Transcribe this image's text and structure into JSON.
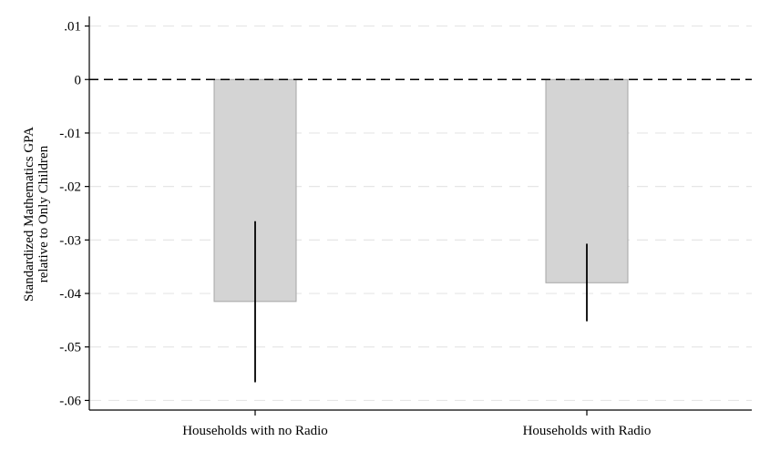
{
  "chart_data": {
    "type": "bar",
    "categories": [
      "Households with no Radio",
      "Households with Radio"
    ],
    "values": [
      -0.0415,
      -0.038
    ],
    "error_bars": [
      {
        "low": -0.0566,
        "high": -0.0265
      },
      {
        "low": -0.0452,
        "high": -0.0307
      }
    ],
    "title": "",
    "xlabel": "",
    "ylabel": [
      "Standardized Mathematics GPA",
      "relative to Only Children"
    ],
    "ylim": [
      -0.0618,
      0.0118
    ],
    "yticks": [
      0.01,
      0,
      -0.01,
      -0.02,
      -0.03,
      -0.04,
      -0.05,
      -0.06
    ],
    "ytick_labels": [
      ".01",
      "0",
      "-.01",
      "-.02",
      "-.03",
      "-.04",
      "-.05",
      "-.06"
    ],
    "reference_line": 0,
    "grid": true,
    "colors": {
      "bar_fill": "#d4d4d4",
      "bar_stroke": "#a6a6a6",
      "error_bar": "#000000",
      "grid": "#e6e6e6",
      "reference_line": "#000000"
    }
  }
}
